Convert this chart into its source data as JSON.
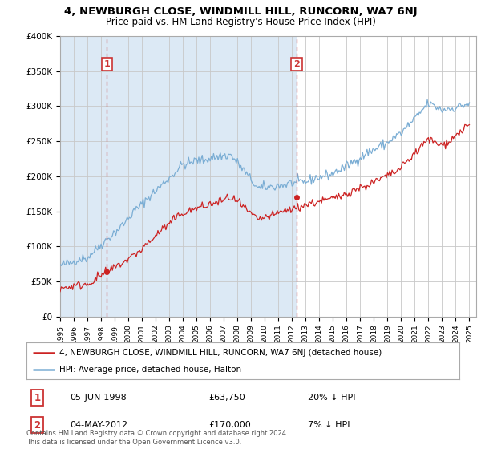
{
  "title_line1": "4, NEWBURGH CLOSE, WINDMILL HILL, RUNCORN, WA7 6NJ",
  "title_line2": "Price paid vs. HM Land Registry's House Price Index (HPI)",
  "bg_color": "#ffffff",
  "plot_bg_color": "#dce9f5",
  "plot_bg_right_color": "#ffffff",
  "grid_color": "#c8c8c8",
  "hpi_color": "#7aadd4",
  "price_color": "#cc2222",
  "dashed_color": "#cc3333",
  "ylim": [
    0,
    400000
  ],
  "yticks": [
    0,
    50000,
    100000,
    150000,
    200000,
    250000,
    300000,
    350000,
    400000
  ],
  "ytick_labels": [
    "£0",
    "£50K",
    "£100K",
    "£150K",
    "£200K",
    "£250K",
    "£300K",
    "£350K",
    "£400K"
  ],
  "xstart_year": 1995,
  "xend_year": 2025,
  "sale1_year": 1998.42,
  "sale1_price": 63750,
  "sale2_year": 2012.33,
  "sale2_price": 170000,
  "legend_label1": "4, NEWBURGH CLOSE, WINDMILL HILL, RUNCORN, WA7 6NJ (detached house)",
  "legend_label2": "HPI: Average price, detached house, Halton",
  "ann1_label": "1",
  "ann1_date": "05-JUN-1998",
  "ann1_price": "£63,750",
  "ann1_hpi": "20% ↓ HPI",
  "ann2_label": "2",
  "ann2_date": "04-MAY-2012",
  "ann2_price": "£170,000",
  "ann2_hpi": "7% ↓ HPI",
  "footer": "Contains HM Land Registry data © Crown copyright and database right 2024.\nThis data is licensed under the Open Government Licence v3.0."
}
